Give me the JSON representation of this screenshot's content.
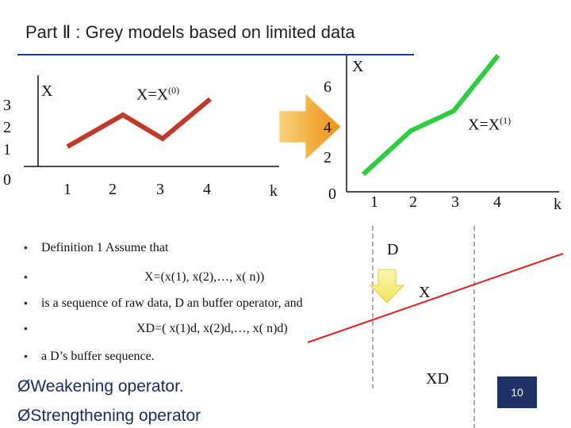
{
  "slide": {
    "title": "Part Ⅱ : Grey models based on limited data",
    "page_number": "10"
  },
  "left_chart": {
    "x_axis_label": "k",
    "y_axis_label": "X",
    "series_label_base": "X=X",
    "series_label_sup": "(0)",
    "y_ticks": [
      "3",
      "2",
      "1",
      "0"
    ],
    "x_ticks": [
      "1",
      "2",
      "3",
      "4"
    ],
    "line_color": "#c0392b"
  },
  "right_chart": {
    "x_axis_label": "k",
    "y_axis_label": "X",
    "series_label_base": "X=X",
    "series_label_sup": "(1)",
    "y_ticks": [
      "6",
      "4",
      "2",
      "0"
    ],
    "x_ticks": [
      "1",
      "2",
      "3",
      "4"
    ],
    "line_color": "#2ecc40"
  },
  "transform_arrow_color": "#f4a21d",
  "buffer_diagram": {
    "operator_label": "D",
    "raw_label": "X",
    "buffered_label": "XD",
    "arrow_color": "#f7f28a",
    "line_color": "#dd2222"
  },
  "bullets": [
    "Definition 1 Assume that",
    "X=(x(1), x(2),…, x( n))",
    "is a sequence of raw data, D an buffer operator, and",
    "XD=( x(1)d, x(2)d,…, x( n)d)",
    "a D’s buffer sequence."
  ],
  "operators": [
    "Weakening operator.",
    "Strengthening operator"
  ],
  "arrow_glyph": "Ø"
}
